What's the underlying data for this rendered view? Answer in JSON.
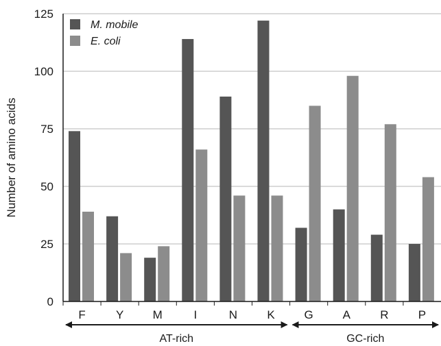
{
  "chart_data": {
    "type": "bar",
    "categories": [
      "F",
      "Y",
      "M",
      "I",
      "N",
      "K",
      "G",
      "A",
      "R",
      "P"
    ],
    "series": [
      {
        "name": "M. mobile",
        "color": "#555555",
        "values": [
          74,
          37,
          19,
          114,
          89,
          122,
          32,
          40,
          29,
          25
        ]
      },
      {
        "name": "E. coli",
        "color": "#8c8c8c",
        "values": [
          39,
          21,
          24,
          66,
          46,
          46,
          85,
          98,
          77,
          54
        ]
      }
    ],
    "ylabel": "Number of amino acids",
    "ylim": [
      0,
      125
    ],
    "yticks": [
      0,
      25,
      50,
      75,
      100,
      125
    ],
    "grid": true,
    "legend_position": "top-left",
    "groups": [
      {
        "label": "AT-rich",
        "from": "F",
        "to": "K"
      },
      {
        "label": "GC-rich",
        "from": "G",
        "to": "P"
      }
    ]
  }
}
